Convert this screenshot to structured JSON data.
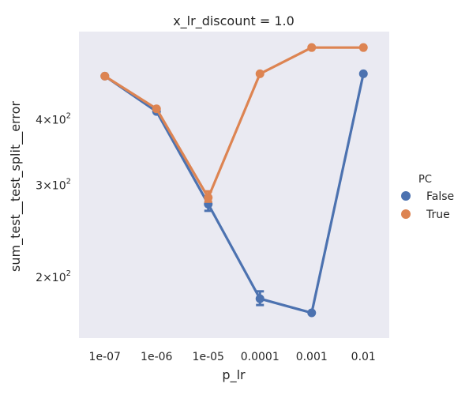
{
  "chart_data": {
    "type": "line",
    "title": "x_lr_discount = 1.0",
    "xlabel": "p_lr",
    "ylabel": "sum_test__test_split__error",
    "categories": [
      "1e-07",
      "1e-06",
      "1e-05",
      "0.0001",
      "0.001",
      "0.01"
    ],
    "y_scale": "log",
    "ylim": [
      153,
      590
    ],
    "yticks": [
      {
        "value": 200,
        "base": "2",
        "exp": "2"
      },
      {
        "value": 300,
        "base": "3",
        "exp": "2"
      },
      {
        "value": 400,
        "base": "4",
        "exp": "2"
      }
    ],
    "grid": false,
    "background": "#eaeaf2",
    "legend": {
      "title": "PC",
      "placement": "center-right"
    },
    "series": [
      {
        "name": "False",
        "color": "#4c72b0",
        "values": [
          485,
          415,
          276,
          182,
          171,
          490
        ],
        "errors": [
          null,
          null,
          [
            268,
            284
          ],
          [
            177,
            188
          ],
          null,
          null
        ]
      },
      {
        "name": "True",
        "color": "#dd8452",
        "values": [
          485,
          420,
          284,
          490,
          550,
          550
        ],
        "errors": [
          null,
          null,
          [
            279,
            292
          ],
          null,
          null,
          null
        ]
      }
    ]
  }
}
